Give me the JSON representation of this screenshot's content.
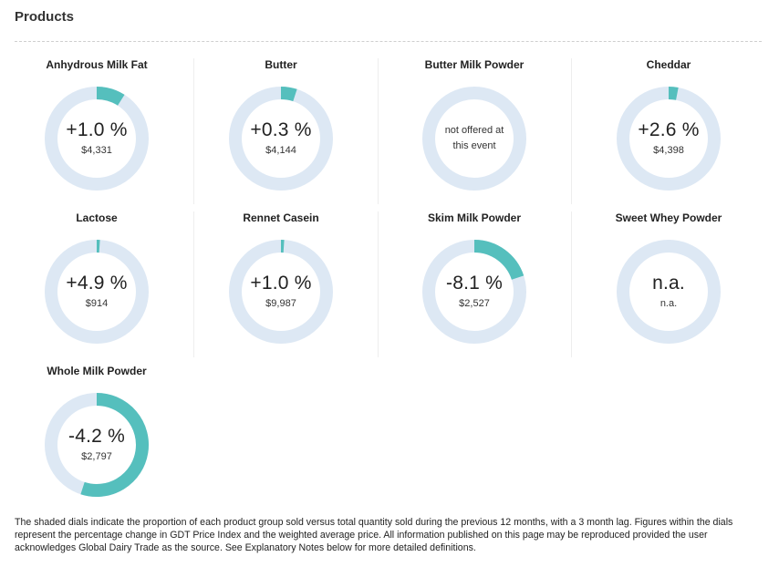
{
  "section_title": "Products",
  "colors": {
    "track": "#dde8f4",
    "fill": "#55bfbd"
  },
  "products": [
    {
      "name": "Anhydrous Milk Fat",
      "change": "+1.0 %",
      "price": "$4,331",
      "share": 0.09,
      "note": ""
    },
    {
      "name": "Butter",
      "change": "+0.3 %",
      "price": "$4,144",
      "share": 0.05,
      "note": ""
    },
    {
      "name": "Butter Milk Powder",
      "change": "",
      "price": "",
      "share": 0,
      "note": "not offered at this event"
    },
    {
      "name": "Cheddar",
      "change": "+2.6 %",
      "price": "$4,398",
      "share": 0.03,
      "note": ""
    },
    {
      "name": "Lactose",
      "change": "+4.9 %",
      "price": "$914",
      "share": 0.01,
      "note": ""
    },
    {
      "name": "Rennet Casein",
      "change": "+1.0 %",
      "price": "$9,987",
      "share": 0.01,
      "note": ""
    },
    {
      "name": "Skim Milk Powder",
      "change": "-8.1 %",
      "price": "$2,527",
      "share": 0.2,
      "note": ""
    },
    {
      "name": "Sweet Whey Powder",
      "change": "n.a.",
      "price": "n.a.",
      "share": 0,
      "note": ""
    },
    {
      "name": "Whole Milk Powder",
      "change": "-4.2 %",
      "price": "$2,797",
      "share": 0.55,
      "note": ""
    }
  ],
  "footnote": "The shaded dials indicate the proportion of each product group sold versus total quantity sold during the previous 12 months, with a 3 month lag. Figures within the dials represent the percentage change in GDT Price Index and the weighted average price. All information published on this page may be reproduced provided the user acknowledges Global Dairy Trade as the source. See Explanatory Notes below for more detailed definitions."
}
